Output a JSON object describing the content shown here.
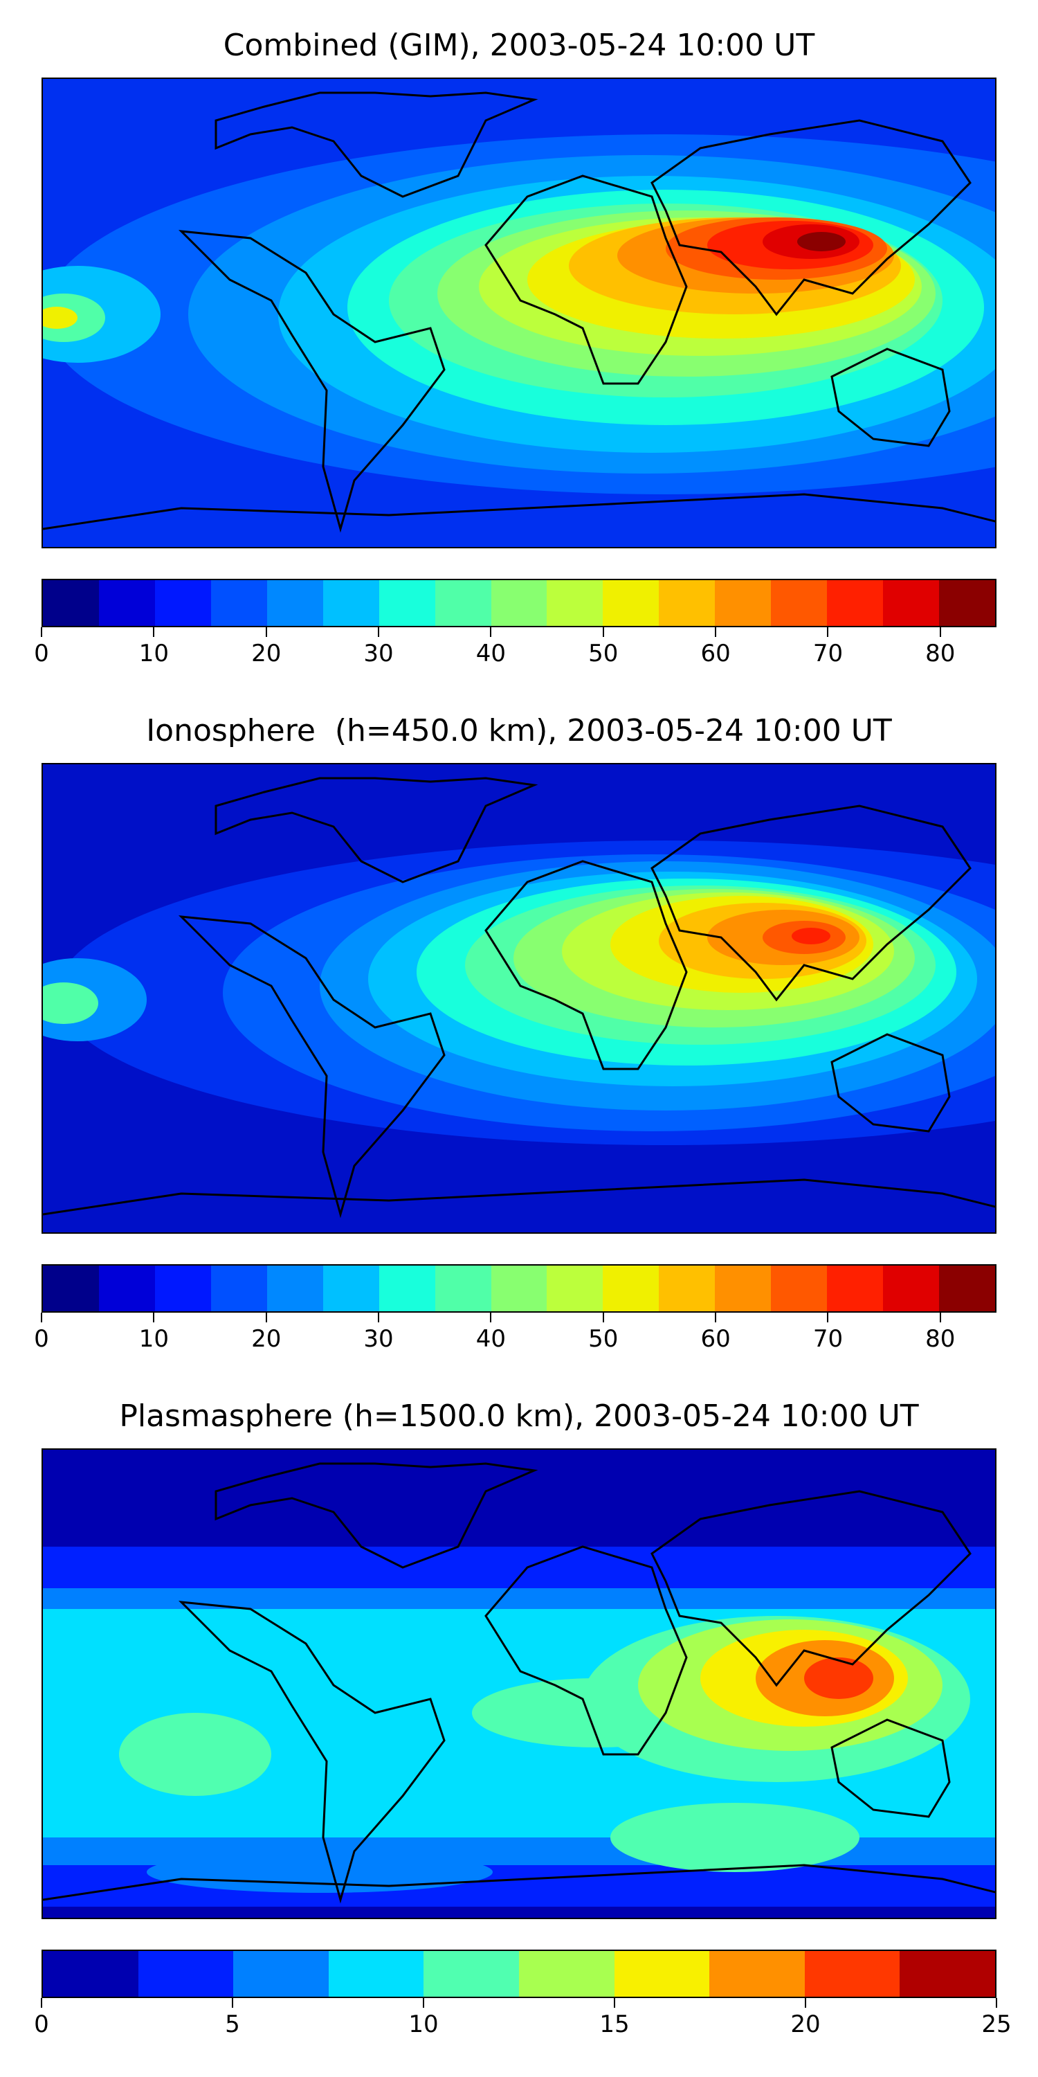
{
  "panels": [
    {
      "title": "Combined (GIM), 2003-05-24 10:00 UT",
      "colorbar": {
        "min": 0,
        "max": 85,
        "step": 5,
        "tick_labels": [
          "0",
          "10",
          "20",
          "30",
          "40",
          "50",
          "60",
          "70",
          "80"
        ],
        "tick_values": [
          0,
          10,
          20,
          30,
          40,
          50,
          60,
          70,
          80
        ]
      }
    },
    {
      "title": "Ionosphere  (h=450.0 km), 2003-05-24 10:00 UT",
      "colorbar": {
        "min": 0,
        "max": 85,
        "step": 5,
        "tick_labels": [
          "0",
          "10",
          "20",
          "30",
          "40",
          "50",
          "60",
          "70",
          "80"
        ],
        "tick_values": [
          0,
          10,
          20,
          30,
          40,
          50,
          60,
          70,
          80
        ]
      }
    },
    {
      "title": "Plasmasphere (h=1500.0 km), 2003-05-24 10:00 UT",
      "colorbar": {
        "min": 0,
        "max": 25,
        "step": 2.5,
        "tick_labels": [
          "0",
          "5",
          "10",
          "15",
          "20",
          "25"
        ],
        "tick_values": [
          0,
          5,
          10,
          15,
          20,
          25
        ]
      }
    }
  ],
  "colors": {
    "jet17": [
      "#00008b",
      "#0000d8",
      "#0018ff",
      "#0050ff",
      "#0088ff",
      "#00c0ff",
      "#18ffdc",
      "#50ffa8",
      "#88ff70",
      "#bcff3c",
      "#f0f000",
      "#ffc000",
      "#ff9000",
      "#ff5800",
      "#ff2000",
      "#e00000",
      "#8b0000"
    ],
    "jet10": [
      "#0000b0",
      "#0020ff",
      "#0080ff",
      "#00e0ff",
      "#50ffb0",
      "#a8ff50",
      "#f8f000",
      "#ff9000",
      "#ff3800",
      "#b00000"
    ],
    "coastline": "#000000"
  }
}
